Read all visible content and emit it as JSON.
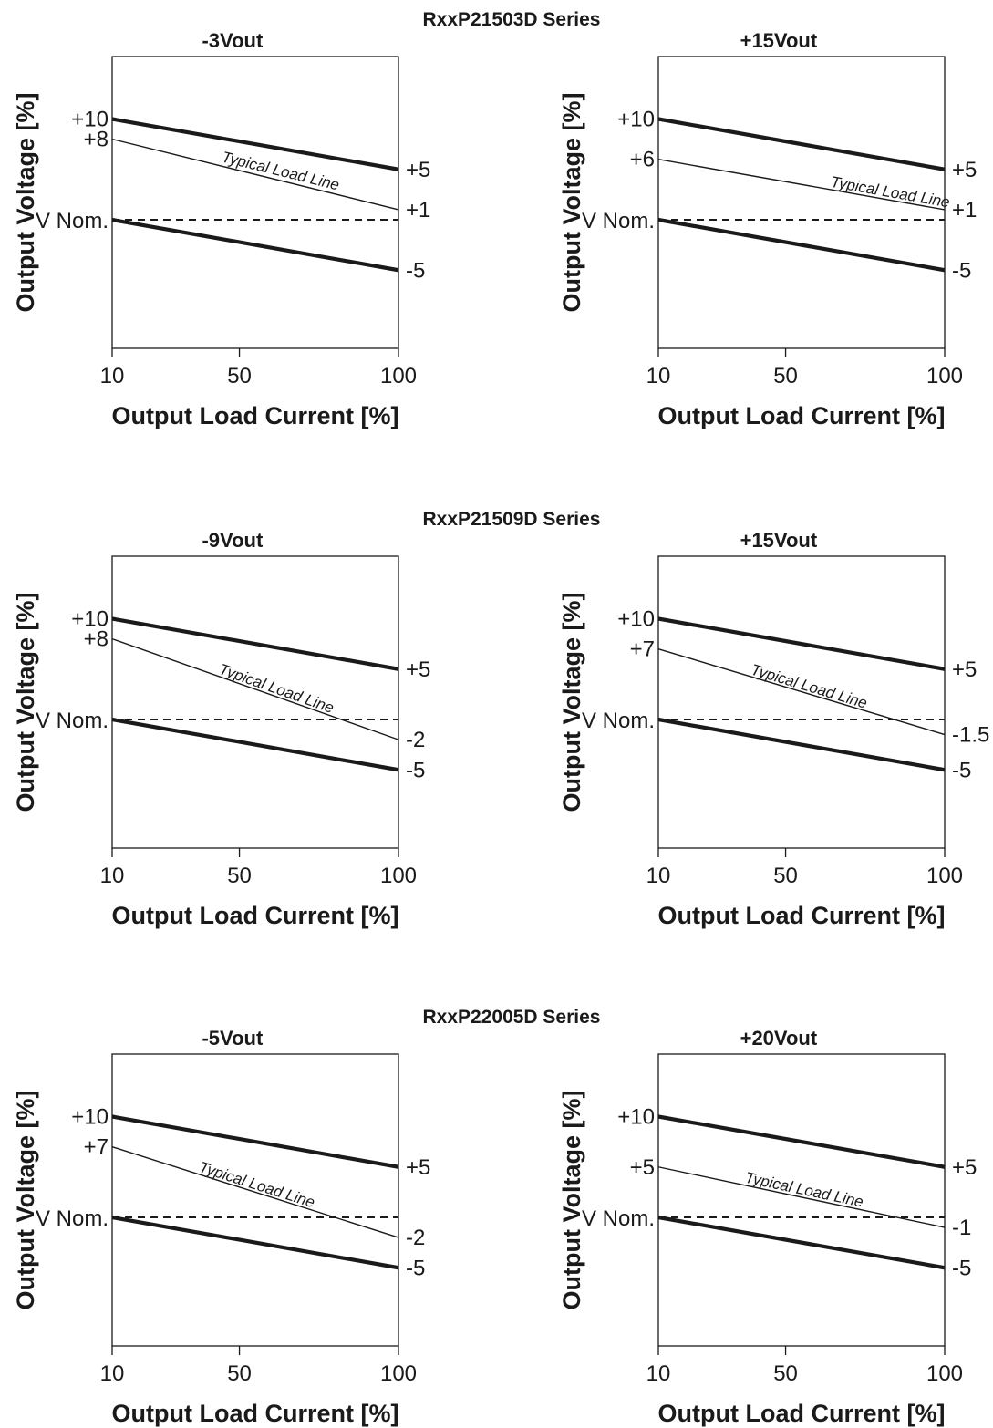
{
  "chart_data": [
    {
      "type": "line",
      "series_title": "RxxP21503D Series",
      "panel_title": "-3Vout",
      "xlabel": "Output Load Current [%]",
      "ylabel": "Output Voltage [%]",
      "x_ticks": [
        "10",
        "50",
        "100"
      ],
      "x": [
        10,
        100
      ],
      "nominal_label": "V Nom.",
      "series": [
        {
          "values": [
            10,
            5
          ],
          "style": "thick",
          "start_label": "+10",
          "end_label": "+5"
        },
        {
          "name": "Typical Load Line",
          "values": [
            8,
            1
          ],
          "style": "thin",
          "start_label": "+8",
          "end_label": "+1"
        },
        {
          "values": [
            0,
            0
          ],
          "style": "dashed"
        },
        {
          "values": [
            0,
            -5
          ],
          "style": "thick",
          "end_label": "-5"
        }
      ]
    },
    {
      "type": "line",
      "series_title": "RxxP21503D Series",
      "panel_title": "+15Vout",
      "xlabel": "Output Load Current [%]",
      "ylabel": "Output Voltage [%]",
      "x_ticks": [
        "10",
        "50",
        "100"
      ],
      "x": [
        10,
        100
      ],
      "nominal_label": "V Nom.",
      "series": [
        {
          "values": [
            10,
            5
          ],
          "style": "thick",
          "start_label": "+10",
          "end_label": "+5"
        },
        {
          "name": "Typical Load Line",
          "values": [
            6,
            1
          ],
          "style": "thin",
          "start_label": "+6",
          "end_label": "+1"
        },
        {
          "values": [
            0,
            0
          ],
          "style": "dashed"
        },
        {
          "values": [
            0,
            -5
          ],
          "style": "thick",
          "end_label": "-5"
        }
      ]
    },
    {
      "type": "line",
      "series_title": "RxxP21509D Series",
      "panel_title": "-9Vout",
      "xlabel": "Output Load Current [%]",
      "ylabel": "Output Voltage [%]",
      "x_ticks": [
        "10",
        "50",
        "100"
      ],
      "x": [
        10,
        100
      ],
      "nominal_label": "V Nom.",
      "series": [
        {
          "values": [
            10,
            5
          ],
          "style": "thick",
          "start_label": "+10",
          "end_label": "+5"
        },
        {
          "name": "Typical Load Line",
          "values": [
            8,
            -2
          ],
          "style": "thin",
          "start_label": "+8",
          "end_label": "-2"
        },
        {
          "values": [
            0,
            0
          ],
          "style": "dashed"
        },
        {
          "values": [
            0,
            -5
          ],
          "style": "thick",
          "end_label": "-5"
        }
      ]
    },
    {
      "type": "line",
      "series_title": "RxxP21509D Series",
      "panel_title": "+15Vout",
      "xlabel": "Output Load Current [%]",
      "ylabel": "Output Voltage [%]",
      "x_ticks": [
        "10",
        "50",
        "100"
      ],
      "x": [
        10,
        100
      ],
      "nominal_label": "V Nom.",
      "series": [
        {
          "values": [
            10,
            5
          ],
          "style": "thick",
          "start_label": "+10",
          "end_label": "+5"
        },
        {
          "name": "Typical Load Line",
          "values": [
            7,
            -1.5
          ],
          "style": "thin",
          "start_label": "+7",
          "end_label": "-1.5"
        },
        {
          "values": [
            0,
            0
          ],
          "style": "dashed"
        },
        {
          "values": [
            0,
            -5
          ],
          "style": "thick",
          "end_label": "-5"
        }
      ]
    },
    {
      "type": "line",
      "series_title": "RxxP22005D Series",
      "panel_title": "-5Vout",
      "xlabel": "Output Load Current [%]",
      "ylabel": "Output Voltage [%]",
      "x_ticks": [
        "10",
        "50",
        "100"
      ],
      "x": [
        10,
        100
      ],
      "nominal_label": "V Nom.",
      "series": [
        {
          "values": [
            10,
            5
          ],
          "style": "thick",
          "start_label": "+10",
          "end_label": "+5"
        },
        {
          "name": "Typical Load Line",
          "values": [
            7,
            -2
          ],
          "style": "thin",
          "start_label": "+7",
          "end_label": "-2"
        },
        {
          "values": [
            0,
            0
          ],
          "style": "dashed"
        },
        {
          "values": [
            0,
            -5
          ],
          "style": "thick",
          "end_label": "-5"
        }
      ]
    },
    {
      "type": "line",
      "series_title": "RxxP22005D Series",
      "panel_title": "+20Vout",
      "xlabel": "Output Load Current [%]",
      "ylabel": "Output Voltage [%]",
      "x_ticks": [
        "10",
        "50",
        "100"
      ],
      "x": [
        10,
        100
      ],
      "nominal_label": "V Nom.",
      "series": [
        {
          "values": [
            10,
            5
          ],
          "style": "thick",
          "start_label": "+10",
          "end_label": "+5"
        },
        {
          "name": "Typical Load Line",
          "values": [
            5,
            -1
          ],
          "style": "thin",
          "start_label": "+5",
          "end_label": "-1"
        },
        {
          "values": [
            0,
            0
          ],
          "style": "dashed"
        },
        {
          "values": [
            0,
            -5
          ],
          "style": "thick",
          "end_label": "-5"
        }
      ]
    }
  ],
  "colors": {
    "line": "#1a1a1a",
    "background": "#ffffff"
  }
}
